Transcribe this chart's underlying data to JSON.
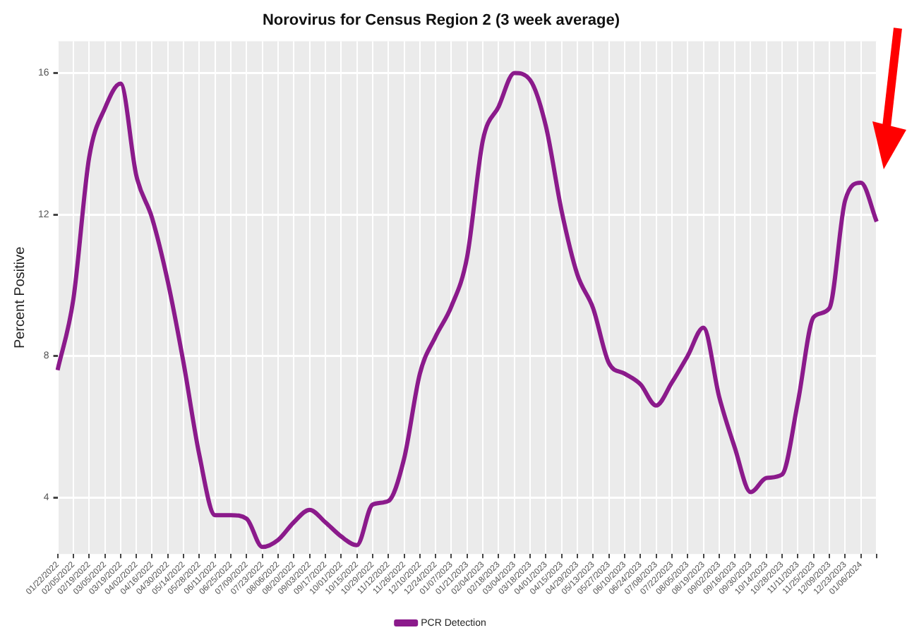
{
  "chart_data": {
    "type": "line",
    "title": "Norovirus for Census Region 2 (3 week average)",
    "ylabel": "Percent Positive",
    "categories": [
      "01/22/2022",
      "02/05/2022",
      "02/19/2022",
      "03/05/2022",
      "03/19/2022",
      "04/02/2022",
      "04/16/2022",
      "04/30/2022",
      "05/14/2022",
      "05/28/2022",
      "06/11/2022",
      "06/25/2022",
      "07/09/2022",
      "07/23/2022",
      "08/06/2022",
      "08/20/2022",
      "09/03/2022",
      "09/17/2022",
      "10/01/2022",
      "10/15/2022",
      "10/29/2022",
      "11/12/2022",
      "11/26/2022",
      "12/10/2022",
      "12/24/2022",
      "01/07/2023",
      "01/21/2023",
      "02/04/2023",
      "02/18/2023",
      "03/04/2023",
      "03/18/2023",
      "04/01/2023",
      "04/15/2023",
      "04/29/2023",
      "05/13/2023",
      "05/27/2023",
      "06/10/2023",
      "06/24/2023",
      "07/08/2023",
      "07/22/2023",
      "08/05/2023",
      "08/19/2023",
      "09/02/2023",
      "09/16/2023",
      "09/30/2023",
      "10/14/2023",
      "10/28/2023",
      "11/11/2023",
      "11/25/2023",
      "12/09/2023",
      "12/23/2023",
      "01/06/2024",
      null
    ],
    "series": [
      {
        "name": "PCR Detection",
        "color": "#8b1a8b",
        "values": [
          7.6,
          9.6,
          13.6,
          15.0,
          15.7,
          13.1,
          11.9,
          10.1,
          7.8,
          5.2,
          3.5,
          3.5,
          3.4,
          2.6,
          2.8,
          3.3,
          3.65,
          3.3,
          2.9,
          2.65,
          3.8,
          3.9,
          5.1,
          7.5,
          8.55,
          9.4,
          10.8,
          14.1,
          15.05,
          16.0,
          15.8,
          14.5,
          12.1,
          10.3,
          9.35,
          7.8,
          7.5,
          7.2,
          6.6,
          7.25,
          8.0,
          8.8,
          6.85,
          5.4,
          4.15,
          4.55,
          4.65,
          6.7,
          9.1,
          9.35,
          12.4,
          12.9,
          11.8
        ]
      }
    ],
    "ylim": [
      2.4,
      16.9
    ],
    "yticks": [
      4,
      8,
      12,
      16
    ],
    "grid": true,
    "legend": "bottom",
    "line_style": "solid",
    "marker": "none"
  }
}
